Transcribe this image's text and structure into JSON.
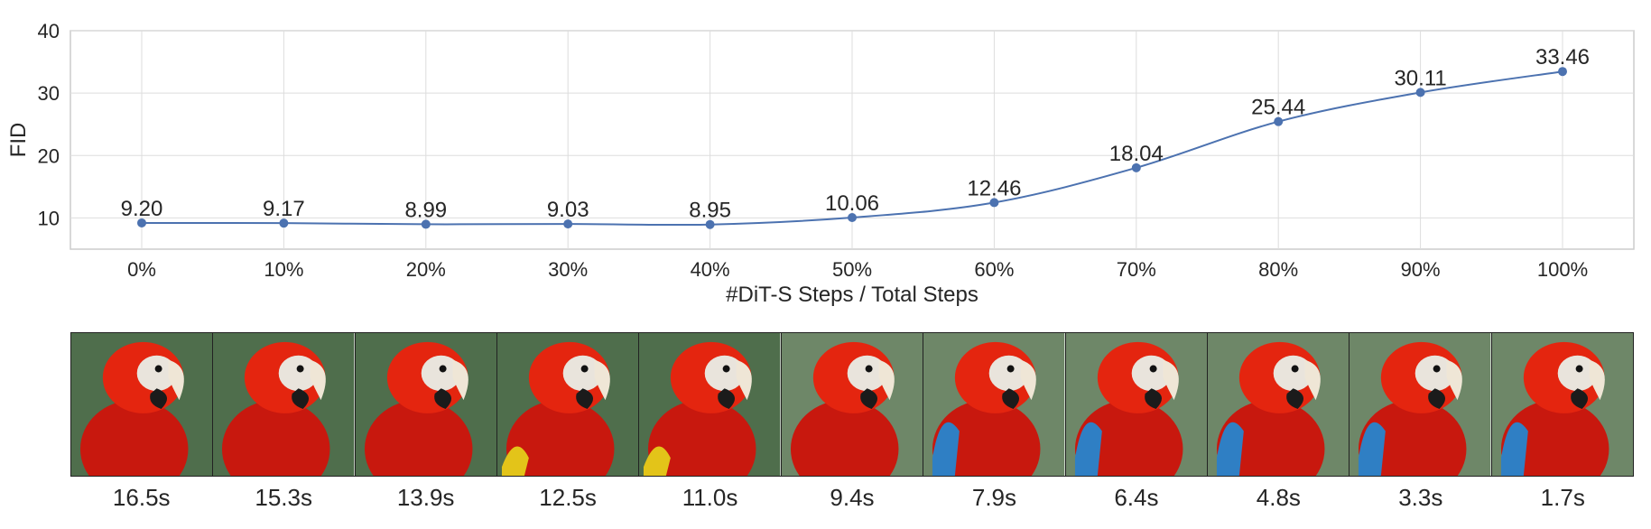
{
  "chart_data": {
    "type": "line",
    "xlabel": "#DiT-S Steps / Total Steps",
    "ylabel": "FID",
    "categories": [
      "0%",
      "10%",
      "20%",
      "30%",
      "40%",
      "50%",
      "60%",
      "70%",
      "80%",
      "90%",
      "100%"
    ],
    "values": [
      9.2,
      9.17,
      8.99,
      9.03,
      8.95,
      10.06,
      12.46,
      18.04,
      25.44,
      30.11,
      33.46
    ],
    "data_labels": [
      "9.20",
      "9.17",
      "8.99",
      "9.03",
      "8.95",
      "10.06",
      "12.46",
      "18.04",
      "25.44",
      "30.11",
      "33.46"
    ],
    "yticks": [
      "10",
      "20",
      "30",
      "40"
    ],
    "ylim": [
      5,
      40
    ],
    "grid": true,
    "line_color": "#4c72b0"
  },
  "thumbnails": {
    "times": [
      "16.5s",
      "15.3s",
      "13.9s",
      "12.5s",
      "11.0s",
      "9.4s",
      "7.9s",
      "6.4s",
      "4.8s",
      "3.3s",
      "1.7s"
    ]
  }
}
